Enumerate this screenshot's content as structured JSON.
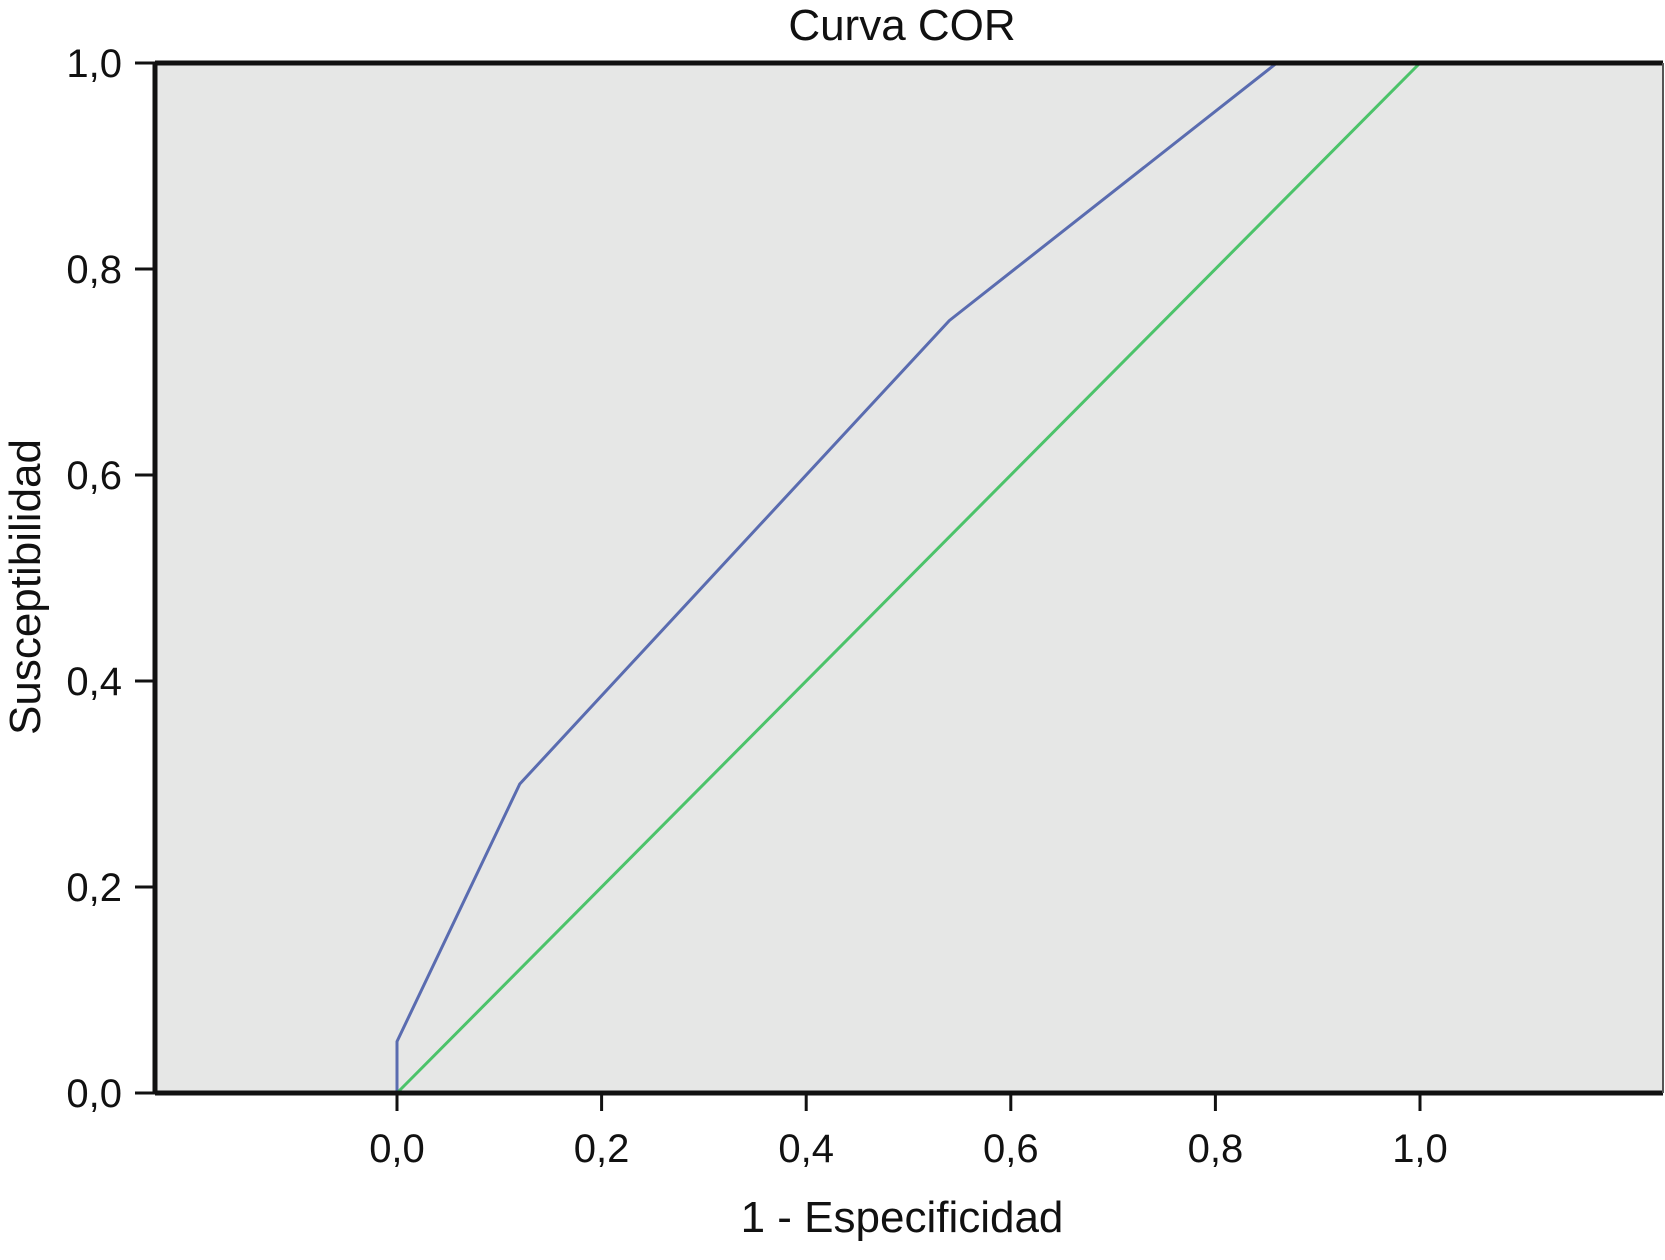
{
  "chart_data": {
    "type": "line",
    "title": "Curva COR",
    "xlabel": "1 - Especificidad",
    "ylabel": "Susceptibilidad",
    "xlim": [
      0.0,
      1.0
    ],
    "ylim": [
      0.0,
      1.0
    ],
    "x_ticks": [
      "0,0",
      "0,2",
      "0,4",
      "0,6",
      "0,8",
      "1,0"
    ],
    "y_ticks": [
      "0,0",
      "0,2",
      "0,4",
      "0,6",
      "0,8",
      "1,0"
    ],
    "grid": false,
    "legend": "none",
    "plot_background": "#e6e7e6",
    "series": [
      {
        "color": "#5a6cb0",
        "x": [
          0.0,
          0.0,
          0.12,
          0.54,
          0.86,
          1.0
        ],
        "y": [
          0.0,
          0.05,
          0.3,
          0.75,
          1.0,
          1.0
        ]
      },
      {
        "color": "#4cc36a",
        "x": [
          0.0,
          1.0
        ],
        "y": [
          0.0,
          1.0
        ]
      }
    ]
  }
}
